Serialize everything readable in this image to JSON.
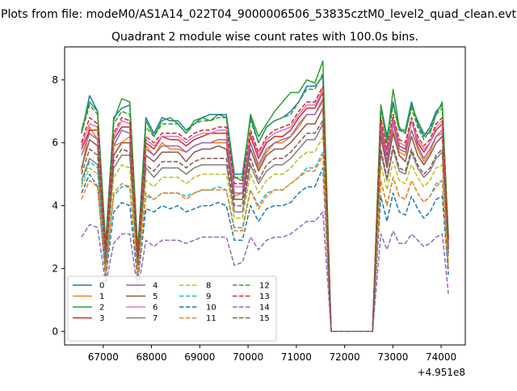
{
  "figure": {
    "suptitle": "Plots from file: modeM0/AS1A14_022T04_9000006506_53835cztM0_level2_quad_clean.evt",
    "title": "Quadrant 2 module wise count rates with 100.0s bins.",
    "x_offset_label": "+4.951e8"
  },
  "colors": [
    "#1f77b4",
    "#ff7f0e",
    "#2ca02c",
    "#d62728",
    "#9467bd",
    "#8c564b",
    "#e377c2",
    "#7f7f7f",
    "#bcbd22",
    "#17becf",
    "#1f77b4",
    "#ff7f0e",
    "#2ca02c",
    "#d62728",
    "#9467bd",
    "#8c564b"
  ],
  "chart_data": {
    "type": "line",
    "title": "Quadrant 2 module wise count rates with 100.0s bins.",
    "xlabel": "",
    "ylabel": "",
    "x_offset": 495100000,
    "xlim": [
      66200,
      74500
    ],
    "ylim": [
      -0.43,
      9.05
    ],
    "x_ticks": [
      67000,
      68000,
      69000,
      70000,
      71000,
      72000,
      73000,
      74000
    ],
    "y_ticks": [
      0,
      2,
      4,
      6,
      8
    ],
    "grid": false,
    "legend_placement": "lower-left",
    "legend_columns": 4,
    "series": [
      {
        "name": "0",
        "style": "solid",
        "profile": [
          6.3,
          7.5,
          7.0,
          2.8,
          6.8,
          7.1,
          7.2,
          2.6,
          6.8,
          6.3,
          6.8,
          6.7,
          6.7,
          6.4,
          6.6,
          6.8,
          6.9,
          6.9,
          6.9,
          5.0,
          5.0,
          6.8,
          6.0,
          6.5,
          6.7,
          6.8,
          7.0,
          7.3,
          7.8,
          7.8,
          8.1,
          0.0,
          0.0,
          0.0,
          0.0,
          0.0,
          0.0,
          7.2,
          6.2,
          7.3,
          6.4,
          6.4,
          7.3,
          6.6,
          6.2,
          6.5,
          7.0,
          7.2,
          3.0
        ]
      },
      {
        "name": "1",
        "style": "solid",
        "profile": [
          5.1,
          6.5,
          6.1,
          2.4,
          5.9,
          6.0,
          6.2,
          2.2,
          5.9,
          5.6,
          6.0,
          5.8,
          5.8,
          5.7,
          5.9,
          6.0,
          6.0,
          6.0,
          6.0,
          4.3,
          4.4,
          6.0,
          5.2,
          5.7,
          6.0,
          6.0,
          6.2,
          6.5,
          6.9,
          6.9,
          7.3,
          0.0,
          0.0,
          0.0,
          0.0,
          0.0,
          0.0,
          6.4,
          5.3,
          6.4,
          5.7,
          5.6,
          6.4,
          5.8,
          5.4,
          5.7,
          6.2,
          6.3,
          2.7
        ]
      },
      {
        "name": "2",
        "style": "solid",
        "profile": [
          6.4,
          7.3,
          7.0,
          2.7,
          6.7,
          7.4,
          7.3,
          2.5,
          6.7,
          6.2,
          6.7,
          6.8,
          6.6,
          6.3,
          6.7,
          6.8,
          6.7,
          6.9,
          6.8,
          4.9,
          4.8,
          6.9,
          6.2,
          6.6,
          7.0,
          7.3,
          7.6,
          7.6,
          8.0,
          7.9,
          8.6,
          0.0,
          0.0,
          0.0,
          0.0,
          0.0,
          0.0,
          7.2,
          6.0,
          7.7,
          6.5,
          6.3,
          7.2,
          6.7,
          6.3,
          6.3,
          6.9,
          7.3,
          2.8
        ]
      },
      {
        "name": "3",
        "style": "solid",
        "profile": [
          5.8,
          6.4,
          6.4,
          2.6,
          6.1,
          6.5,
          6.5,
          2.4,
          6.0,
          5.8,
          6.2,
          6.1,
          6.1,
          5.9,
          6.1,
          6.2,
          6.3,
          6.3,
          6.3,
          4.6,
          4.6,
          6.2,
          5.5,
          6.0,
          6.2,
          6.2,
          6.4,
          6.8,
          7.1,
          7.1,
          7.6,
          0.0,
          0.0,
          0.0,
          0.0,
          0.0,
          0.0,
          6.6,
          5.6,
          6.7,
          5.9,
          5.8,
          6.7,
          6.0,
          5.7,
          6.0,
          6.4,
          6.6,
          2.8
        ]
      },
      {
        "name": "4",
        "style": "solid",
        "profile": [
          5.6,
          6.3,
          6.1,
          2.5,
          5.9,
          6.4,
          6.3,
          2.3,
          5.8,
          5.6,
          5.9,
          5.9,
          5.9,
          5.7,
          5.9,
          6.0,
          6.0,
          6.1,
          6.1,
          4.4,
          4.4,
          6.0,
          5.3,
          5.8,
          6.0,
          6.1,
          6.2,
          6.6,
          6.9,
          6.9,
          7.4,
          0.0,
          0.0,
          0.0,
          0.0,
          0.0,
          0.0,
          6.4,
          5.4,
          6.6,
          5.8,
          5.7,
          6.4,
          5.9,
          5.5,
          5.8,
          6.2,
          6.4,
          2.7
        ]
      },
      {
        "name": "5",
        "style": "solid",
        "profile": [
          5.2,
          6.1,
          5.9,
          2.4,
          5.6,
          6.0,
          6.0,
          2.2,
          5.6,
          5.4,
          5.7,
          5.7,
          5.7,
          5.4,
          5.7,
          5.8,
          5.8,
          5.9,
          5.8,
          4.2,
          4.2,
          5.8,
          5.1,
          5.6,
          5.8,
          5.8,
          6.0,
          6.3,
          6.6,
          6.6,
          7.1,
          0.0,
          0.0,
          0.0,
          0.0,
          0.0,
          0.0,
          6.2,
          5.2,
          6.3,
          5.6,
          5.4,
          6.2,
          5.6,
          5.3,
          5.6,
          6.0,
          6.2,
          2.6
        ]
      },
      {
        "name": "6",
        "style": "solid",
        "profile": [
          5.9,
          6.6,
          6.5,
          2.6,
          6.2,
          6.7,
          6.6,
          2.4,
          6.1,
          5.9,
          6.2,
          6.2,
          6.2,
          6.0,
          6.2,
          6.3,
          6.3,
          6.4,
          6.4,
          4.6,
          4.6,
          6.3,
          5.6,
          6.1,
          6.3,
          6.4,
          6.5,
          6.9,
          7.2,
          7.2,
          7.7,
          0.0,
          0.0,
          0.0,
          0.0,
          0.0,
          0.0,
          6.7,
          5.7,
          6.8,
          6.0,
          5.9,
          6.7,
          6.1,
          5.8,
          6.0,
          6.5,
          6.7,
          2.8
        ]
      },
      {
        "name": "7",
        "style": "solid",
        "profile": [
          4.8,
          5.5,
          5.3,
          2.2,
          5.2,
          5.6,
          5.6,
          2.0,
          5.2,
          4.9,
          5.2,
          5.2,
          5.2,
          5.0,
          5.2,
          5.3,
          5.3,
          5.3,
          5.3,
          3.8,
          3.8,
          5.3,
          4.7,
          5.1,
          5.3,
          5.3,
          5.5,
          5.8,
          6.1,
          6.1,
          6.6,
          0.0,
          0.0,
          0.0,
          0.0,
          0.0,
          0.0,
          5.7,
          4.8,
          5.8,
          5.1,
          5.0,
          5.7,
          5.2,
          4.9,
          5.1,
          5.5,
          5.7,
          2.4
        ]
      },
      {
        "name": "8",
        "style": "dashed",
        "profile": [
          4.6,
          5.2,
          5.0,
          2.0,
          4.9,
          5.3,
          5.2,
          1.9,
          4.8,
          4.6,
          4.9,
          4.9,
          4.9,
          4.7,
          4.9,
          5.0,
          5.0,
          5.0,
          5.0,
          3.6,
          3.6,
          5.0,
          4.4,
          4.8,
          5.0,
          5.0,
          5.2,
          5.5,
          5.7,
          5.7,
          6.2,
          0.0,
          0.0,
          0.0,
          0.0,
          0.0,
          0.0,
          5.3,
          4.5,
          5.4,
          4.8,
          4.7,
          5.3,
          4.9,
          4.6,
          4.8,
          5.2,
          5.3,
          2.2
        ]
      },
      {
        "name": "9",
        "style": "dashed",
        "profile": [
          4.7,
          5.4,
          5.2,
          2.0,
          4.3,
          4.6,
          4.6,
          1.8,
          4.3,
          4.2,
          4.4,
          4.4,
          4.4,
          4.3,
          4.4,
          4.5,
          4.5,
          4.6,
          4.5,
          3.3,
          3.3,
          4.5,
          4.0,
          4.4,
          4.5,
          4.5,
          4.7,
          4.9,
          5.2,
          5.2,
          5.7,
          0.0,
          0.0,
          0.0,
          0.0,
          0.0,
          0.0,
          4.8,
          4.0,
          4.9,
          4.3,
          4.2,
          4.8,
          4.4,
          4.1,
          4.3,
          4.7,
          4.8,
          2.0
        ]
      },
      {
        "name": "10",
        "style": "dashed",
        "profile": [
          4.4,
          5.0,
          4.6,
          1.7,
          3.8,
          4.1,
          4.0,
          1.6,
          3.9,
          3.8,
          4.0,
          3.9,
          4.0,
          3.8,
          3.9,
          4.0,
          4.0,
          4.1,
          4.0,
          2.9,
          2.9,
          4.0,
          3.5,
          3.9,
          4.0,
          4.0,
          4.1,
          4.4,
          4.6,
          4.6,
          5.2,
          0.0,
          0.0,
          0.0,
          0.0,
          0.0,
          0.0,
          4.3,
          3.5,
          4.4,
          3.8,
          3.7,
          4.3,
          3.9,
          3.6,
          3.8,
          4.2,
          4.3,
          1.8
        ]
      },
      {
        "name": "11",
        "style": "dashed",
        "profile": [
          4.2,
          4.8,
          4.6,
          1.8,
          4.4,
          4.7,
          4.6,
          1.7,
          4.4,
          4.2,
          4.4,
          4.4,
          4.4,
          4.2,
          4.4,
          4.5,
          4.5,
          4.5,
          4.5,
          3.2,
          3.2,
          4.5,
          3.9,
          4.3,
          4.5,
          4.5,
          4.7,
          4.9,
          5.1,
          5.1,
          5.6,
          0.0,
          0.0,
          0.0,
          0.0,
          0.0,
          0.0,
          4.8,
          4.0,
          4.9,
          4.3,
          4.2,
          4.8,
          4.4,
          4.1,
          4.3,
          4.6,
          4.8,
          2.0
        ]
      },
      {
        "name": "12",
        "style": "dashed",
        "profile": [
          6.3,
          7.2,
          6.9,
          2.7,
          6.6,
          7.0,
          6.9,
          2.5,
          6.5,
          6.2,
          6.6,
          6.6,
          6.6,
          6.3,
          6.6,
          6.7,
          6.7,
          6.8,
          6.8,
          4.9,
          4.9,
          6.7,
          6.0,
          6.5,
          6.7,
          6.8,
          6.9,
          7.3,
          7.7,
          7.7,
          8.2,
          0.0,
          0.0,
          0.0,
          0.0,
          0.0,
          0.0,
          7.1,
          6.0,
          7.2,
          6.4,
          6.3,
          7.1,
          6.5,
          6.1,
          6.4,
          6.9,
          7.1,
          3.0
        ]
      },
      {
        "name": "13",
        "style": "dashed",
        "profile": [
          6.0,
          6.8,
          6.6,
          2.6,
          6.3,
          6.8,
          6.7,
          2.4,
          6.2,
          6.0,
          6.3,
          6.3,
          6.3,
          6.1,
          6.3,
          6.4,
          6.4,
          6.5,
          6.5,
          4.7,
          4.7,
          6.4,
          5.7,
          6.2,
          6.4,
          6.5,
          6.6,
          7.0,
          7.3,
          7.3,
          7.8,
          0.0,
          0.0,
          0.0,
          0.0,
          0.0,
          0.0,
          6.8,
          5.8,
          6.9,
          6.1,
          6.0,
          6.8,
          6.2,
          5.9,
          6.1,
          6.6,
          6.8,
          2.9
        ]
      },
      {
        "name": "14",
        "style": "dashed",
        "profile": [
          3.0,
          3.4,
          3.3,
          1.5,
          2.8,
          3.1,
          3.1,
          1.3,
          2.9,
          2.7,
          2.9,
          2.9,
          2.9,
          2.8,
          2.9,
          3.0,
          3.0,
          3.0,
          3.0,
          2.1,
          2.2,
          3.0,
          2.6,
          2.9,
          3.0,
          3.0,
          3.1,
          3.3,
          3.5,
          3.5,
          3.8,
          0.0,
          0.0,
          0.0,
          0.0,
          0.0,
          0.0,
          3.1,
          2.6,
          3.2,
          2.8,
          2.8,
          3.1,
          2.9,
          2.7,
          2.8,
          3.0,
          3.1,
          1.2
        ]
      },
      {
        "name": "15",
        "style": "dashed",
        "profile": [
          5.0,
          5.8,
          5.6,
          2.2,
          5.4,
          5.8,
          5.7,
          2.1,
          5.3,
          5.1,
          5.4,
          5.4,
          5.4,
          5.2,
          5.4,
          5.5,
          5.5,
          5.5,
          5.5,
          4.0,
          4.0,
          5.5,
          4.8,
          5.3,
          5.5,
          5.5,
          5.7,
          6.0,
          6.3,
          6.3,
          6.7,
          0.0,
          0.0,
          0.0,
          0.0,
          0.0,
          0.0,
          5.8,
          4.9,
          5.9,
          5.2,
          5.1,
          5.8,
          5.3,
          5.0,
          5.2,
          5.6,
          5.8,
          2.5
        ]
      }
    ]
  }
}
